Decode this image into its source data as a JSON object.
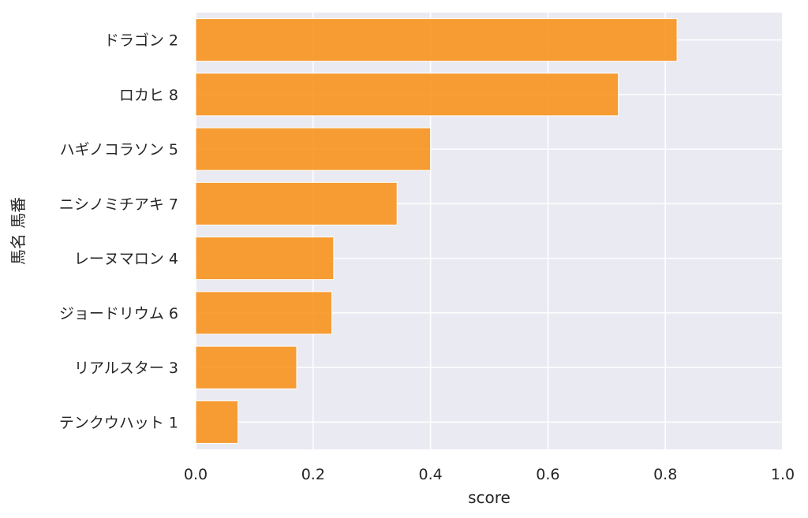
{
  "chart_data": {
    "type": "bar",
    "orientation": "horizontal",
    "categories": [
      "ドラゴン 2",
      "ロカヒ 8",
      "ハギノコラソン 5",
      "ニシノミチアキ 7",
      "レーヌマロン 4",
      "ジョードリウム 6",
      "リアルスター 3",
      "テンクウハット 1"
    ],
    "values": [
      0.82,
      0.72,
      0.4,
      0.343,
      0.235,
      0.232,
      0.172,
      0.072
    ],
    "xlabel": "score",
    "ylabel": "馬名 馬番",
    "xlim": [
      0,
      1.0
    ],
    "xticks": [
      "0.0",
      "0.2",
      "0.4",
      "0.6",
      "0.8",
      "1.0"
    ],
    "grid": true,
    "legend": "none",
    "colors": {
      "bar": "#F7931E",
      "background": "#EAEAF2",
      "grid": "#FFFFFF"
    }
  }
}
